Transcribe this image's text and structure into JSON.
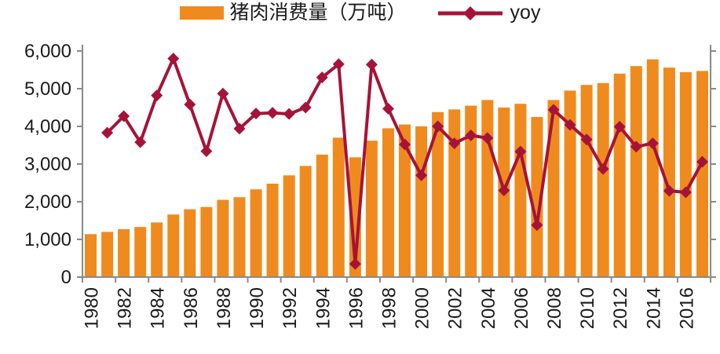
{
  "legend": {
    "bars_label": "猪肉消费量（万吨）",
    "line_label": "yoy"
  },
  "colors": {
    "bar": "#EF8B1E",
    "line": "#A61338",
    "axis": "#8A8A8A",
    "text": "#1B1B1B",
    "background": "#FFFFFF"
  },
  "chart_data": {
    "type": "bar",
    "title": "",
    "xlabel": "",
    "ylabel": "",
    "ylim": [
      0,
      6000
    ],
    "ytick_interval": 1000,
    "grid": false,
    "legend_position": "top-center",
    "ytick_labels": [
      "0",
      "1,000",
      "2,000",
      "3,000",
      "4,000",
      "5,000",
      "6,000"
    ],
    "xtick_labels": [
      "1980",
      "1982",
      "1984",
      "1986",
      "1988",
      "1990",
      "1992",
      "1994",
      "1996",
      "1998",
      "2000",
      "2002",
      "2004",
      "2006",
      "2008",
      "2010",
      "2012",
      "2014",
      "2016"
    ],
    "categories": [
      "1980",
      "1981",
      "1982",
      "1983",
      "1984",
      "1985",
      "1986",
      "1987",
      "1988",
      "1989",
      "1990",
      "1991",
      "1992",
      "1993",
      "1994",
      "1995",
      "1996",
      "1997",
      "1998",
      "1999",
      "2000",
      "2001",
      "2002",
      "2003",
      "2004",
      "2005",
      "2006",
      "2007",
      "2008",
      "2009",
      "2010",
      "2011",
      "2012",
      "2013",
      "2014",
      "2015",
      "2016",
      "2017"
    ],
    "series": [
      {
        "name": "猪肉消费量（万吨）",
        "type": "bar",
        "color": "#EF8B1E",
        "values": [
          1140,
          1200,
          1270,
          1330,
          1450,
          1660,
          1800,
          1860,
          2050,
          2120,
          2330,
          2480,
          2700,
          2950,
          3250,
          3700,
          3180,
          3620,
          3950,
          4050,
          4000,
          4380,
          4450,
          4550,
          4700,
          4500,
          4600,
          4250,
          4700,
          4950,
          5100,
          5150,
          5400,
          5600,
          5780,
          5560,
          5440,
          5470
        ]
      },
      {
        "name": "yoy",
        "type": "line",
        "marker": "diamond",
        "color": "#A61338",
        "values": [
          null,
          3830,
          4270,
          3580,
          4820,
          5800,
          4580,
          3340,
          4870,
          3940,
          4340,
          4360,
          4330,
          4500,
          5300,
          5650,
          350,
          5640,
          4470,
          3520,
          2700,
          4000,
          3550,
          3760,
          3690,
          2300,
          3330,
          1380,
          4440,
          4040,
          3650,
          2870,
          3990,
          3460,
          3550,
          2290,
          2250,
          3060
        ]
      }
    ]
  }
}
